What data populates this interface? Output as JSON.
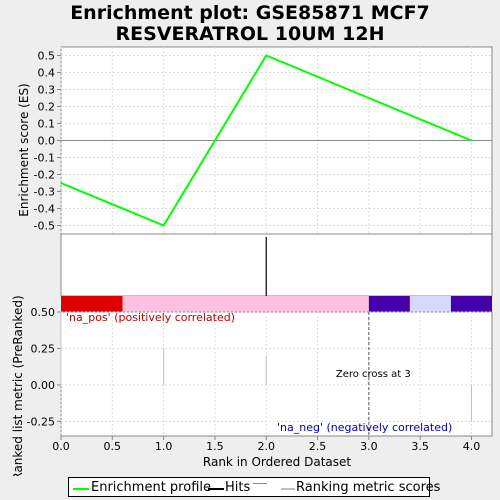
{
  "title_line1": "Enrichment plot: GSE85871 MCF7",
  "title_line2": "RESVERATROL 10UM 12H",
  "colors": {
    "es_line": "#00ff00",
    "hits": "#000000",
    "ranking": "#c0c0c0",
    "pos_red": "#dd0000",
    "pink": "#ffc0e0",
    "purple": "#4400aa",
    "lavender": "#d8d8ff",
    "pos_label": "#bb0000",
    "neg_label": "#0000bb"
  },
  "labels": {
    "es_ylabel": "Enrichment score (ES)",
    "rank_ylabel": "Ranked list metric (PreRanked)",
    "xlabel": "Rank in Ordered Dataset",
    "pos_label": "'na_pos' (positively correlated)",
    "neg_label": "'na_neg' (negatively correlated)",
    "zero_cross": "Zero cross at 3"
  },
  "legend": {
    "es": "Enrichment profile",
    "hits": "Hits",
    "ranking": "Ranking metric scores"
  },
  "chart_data": {
    "type": "line",
    "es_profile": {
      "x": [
        0,
        1,
        2,
        3,
        4
      ],
      "y": [
        -0.25,
        -0.5,
        0.5,
        0.25,
        0.0
      ]
    },
    "hits": [
      2
    ],
    "ranking_metric": {
      "x": [
        0,
        1,
        2,
        3,
        4
      ],
      "y": [
        0.5,
        0.25,
        0.2,
        0.0,
        -0.25
      ]
    },
    "zero_cross": 3,
    "xlim": [
      0,
      4.2
    ],
    "es_ylim": [
      -0.55,
      0.55
    ],
    "es_yticks": [
      "0.5",
      "0.4",
      "0.3",
      "0.2",
      "0.1",
      "0.0",
      "-0.1",
      "-0.2",
      "-0.3",
      "-0.4",
      "-0.5"
    ],
    "rank_ylim": [
      -0.35,
      0.5
    ],
    "rank_yticks": [
      "0.50",
      "0.25",
      "0.00",
      "-0.25"
    ],
    "xticks": [
      "0.0",
      "0.5",
      "1.0",
      "1.5",
      "2.0",
      "2.5",
      "3.0",
      "3.5",
      "4.0"
    ],
    "color_bar": [
      {
        "from": 0,
        "to": 0.6,
        "color": "pos_red"
      },
      {
        "from": 0.6,
        "to": 3.0,
        "color": "pink"
      },
      {
        "from": 3.0,
        "to": 3.4,
        "color": "purple"
      },
      {
        "from": 3.4,
        "to": 3.8,
        "color": "lavender"
      },
      {
        "from": 3.8,
        "to": 4.2,
        "color": "purple"
      }
    ],
    "grid": true
  }
}
